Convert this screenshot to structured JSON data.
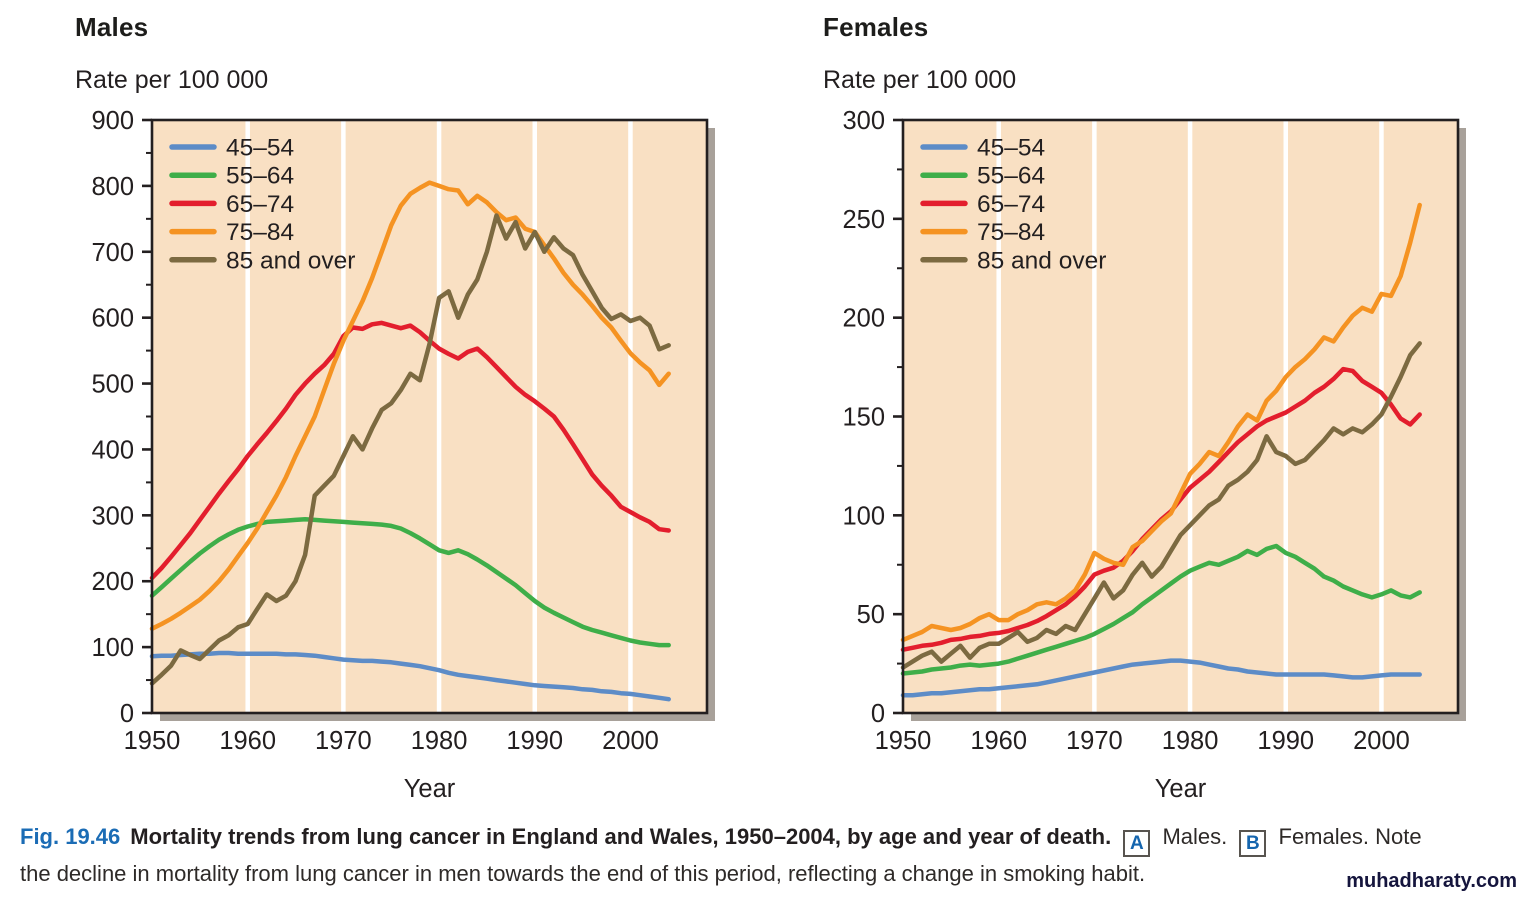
{
  "colors": {
    "age_45_54": "#5d8cc7",
    "age_55_64": "#3fae49",
    "age_65_74": "#e31e2d",
    "age_75_84": "#f59322",
    "age_85_over": "#7c6a41",
    "plot_bg": "#f9e0c3",
    "gridline": "#ffffff",
    "axis": "#231f20",
    "shadow": "#a8a19a",
    "fig_accent": "#1b6cb5",
    "marker_letter": "#1565ae",
    "watermark": "#15153d"
  },
  "chart_data": [
    {
      "type": "line",
      "key": "males",
      "title": "Males",
      "subtitle": "Rate per 100 000",
      "xlabel": "Year",
      "ylim": [
        0,
        900
      ],
      "ytick_step": 100,
      "yminor_step": 50,
      "xlim": [
        1950,
        2008
      ],
      "xticks": [
        1950,
        1960,
        1970,
        1980,
        1990,
        2000
      ],
      "x": {
        "start": 1950,
        "end": 2004,
        "step": 1
      },
      "legend_position": "top-left-inside",
      "series": [
        {
          "name": "45–54",
          "color_key": "age_45_54",
          "values": [
            86,
            87,
            87,
            88,
            89,
            90,
            90,
            91,
            91,
            90,
            90,
            90,
            90,
            90,
            89,
            89,
            88,
            87,
            85,
            83,
            81,
            80,
            79,
            79,
            78,
            77,
            75,
            73,
            71,
            68,
            65,
            61,
            58,
            56,
            54,
            52,
            50,
            48,
            46,
            44,
            42,
            41,
            40,
            39,
            38,
            36,
            35,
            33,
            32,
            30,
            29,
            27,
            25,
            23,
            21
          ]
        },
        {
          "name": "55–64",
          "color_key": "age_55_64",
          "values": [
            178,
            191,
            204,
            217,
            230,
            242,
            253,
            263,
            271,
            278,
            283,
            287,
            290,
            291,
            292,
            293,
            294,
            293,
            292,
            291,
            290,
            289,
            288,
            287,
            286,
            284,
            280,
            273,
            265,
            256,
            247,
            243,
            247,
            241,
            233,
            224,
            214,
            204,
            194,
            182,
            170,
            160,
            152,
            145,
            138,
            131,
            126,
            122,
            118,
            114,
            110,
            107,
            105,
            103,
            103
          ]
        },
        {
          "name": "65–74",
          "color_key": "age_65_74",
          "values": [
            205,
            220,
            237,
            255,
            273,
            293,
            313,
            333,
            352,
            370,
            390,
            408,
            425,
            443,
            462,
            483,
            500,
            515,
            528,
            545,
            572,
            585,
            583,
            590,
            592,
            588,
            584,
            588,
            578,
            565,
            553,
            545,
            538,
            548,
            553,
            540,
            525,
            510,
            495,
            483,
            473,
            462,
            450,
            430,
            408,
            385,
            362,
            345,
            330,
            313,
            305,
            297,
            290,
            279,
            277
          ]
        },
        {
          "name": "75–84",
          "color_key": "age_75_84",
          "values": [
            128,
            135,
            143,
            152,
            162,
            172,
            185,
            200,
            218,
            238,
            258,
            280,
            305,
            330,
            358,
            390,
            420,
            450,
            490,
            530,
            565,
            595,
            625,
            660,
            700,
            740,
            770,
            788,
            797,
            805,
            800,
            795,
            793,
            772,
            785,
            775,
            760,
            748,
            752,
            735,
            730,
            710,
            690,
            668,
            650,
            635,
            618,
            600,
            585,
            565,
            546,
            532,
            520,
            498,
            515
          ]
        },
        {
          "name": "85 and over",
          "color_key": "age_85_over",
          "values": [
            45,
            58,
            72,
            95,
            88,
            82,
            96,
            110,
            118,
            130,
            135,
            158,
            180,
            170,
            178,
            200,
            240,
            330,
            345,
            360,
            390,
            420,
            400,
            432,
            460,
            470,
            490,
            515,
            505,
            560,
            630,
            640,
            600,
            635,
            658,
            700,
            755,
            720,
            745,
            705,
            730,
            700,
            722,
            705,
            695,
            665,
            640,
            615,
            598,
            605,
            595,
            600,
            588,
            552,
            558
          ]
        }
      ]
    },
    {
      "type": "line",
      "key": "females",
      "title": "Females",
      "subtitle": "Rate per 100 000",
      "xlabel": "Year",
      "ylim": [
        0,
        300
      ],
      "ytick_step": 50,
      "yminor_step": 25,
      "xlim": [
        1950,
        2008
      ],
      "xticks": [
        1950,
        1960,
        1970,
        1980,
        1990,
        2000
      ],
      "x": {
        "start": 1950,
        "end": 2004,
        "step": 1
      },
      "legend_position": "top-left-inside",
      "series": [
        {
          "name": "45–54",
          "color_key": "age_45_54",
          "values": [
            9,
            9,
            9.5,
            10,
            10,
            10.5,
            11,
            11.5,
            12,
            12,
            12.5,
            13,
            13.5,
            14,
            14.5,
            15.5,
            16.5,
            17.5,
            18.5,
            19.5,
            20.5,
            21.5,
            22.5,
            23.5,
            24.5,
            25,
            25.5,
            26,
            26.5,
            26.5,
            26,
            25.5,
            24.5,
            23.5,
            22.5,
            22,
            21,
            20.5,
            20,
            19.5,
            19.5,
            19.5,
            19.5,
            19.5,
            19.5,
            19,
            18.5,
            18,
            18,
            18.5,
            19,
            19.5,
            19.5,
            19.5,
            19.5
          ]
        },
        {
          "name": "55–64",
          "color_key": "age_55_64",
          "values": [
            20,
            20.5,
            21,
            22,
            22.5,
            23,
            24,
            24.5,
            24,
            24.5,
            25,
            26,
            27.5,
            29,
            30.5,
            32,
            33.5,
            35,
            36.5,
            38,
            40,
            42.5,
            45,
            48,
            51,
            55,
            58.5,
            62,
            65.5,
            69,
            72,
            74,
            76,
            75,
            77,
            79,
            82,
            80,
            83,
            84.5,
            81,
            79,
            76,
            73,
            69,
            67,
            64,
            62,
            60,
            58.5,
            60,
            62,
            59.5,
            58.5,
            61
          ]
        },
        {
          "name": "65–74",
          "color_key": "age_65_74",
          "values": [
            32,
            33,
            34,
            34.5,
            35.5,
            37,
            37.5,
            38.5,
            39,
            40,
            40.5,
            41.5,
            43,
            44.5,
            46.5,
            49,
            52,
            55,
            59,
            64,
            70,
            72,
            73.5,
            77,
            82,
            88,
            93,
            98,
            102,
            108,
            114,
            118,
            122,
            127,
            132,
            137,
            141,
            145,
            148,
            150,
            152,
            155,
            158,
            162,
            165,
            169,
            174,
            173,
            168,
            165,
            162,
            156,
            149,
            146,
            151
          ]
        },
        {
          "name": "75–84",
          "color_key": "age_75_84",
          "values": [
            37,
            39,
            41,
            44,
            43,
            42,
            43,
            45,
            48,
            50,
            47,
            47,
            50,
            52,
            55,
            56,
            55,
            58,
            62,
            70,
            81,
            78,
            76,
            75,
            84,
            87,
            92,
            97,
            101,
            111,
            121,
            126,
            132,
            130,
            137,
            145,
            151,
            148,
            158,
            163,
            170,
            175,
            179,
            184,
            190,
            188,
            195,
            201,
            205,
            203,
            212,
            211,
            221,
            238,
            257
          ]
        },
        {
          "name": "85 and over",
          "color_key": "age_85_over",
          "values": [
            23,
            26,
            29,
            31,
            26,
            30,
            34,
            28,
            33,
            35,
            35,
            38,
            41,
            36,
            38,
            42,
            40,
            44,
            42,
            50,
            58,
            66,
            58,
            62,
            70,
            76,
            69,
            74,
            82,
            90,
            95,
            100,
            105,
            108,
            115,
            118,
            122,
            128,
            140,
            132,
            130,
            126,
            128,
            133,
            138,
            144,
            141,
            144,
            142,
            146,
            151,
            160,
            170,
            181,
            187
          ]
        }
      ]
    }
  ],
  "caption": {
    "fig_label": "Fig. 19.46",
    "bold_text": "Mortality trends from lung cancer in England and Wales, 1950–2004, by age and year of death.",
    "marker_a": "A",
    "marker_a_text": "Males.",
    "marker_b": "B",
    "marker_b_text": "Females. Note",
    "line2": "the decline in mortality from lung cancer in men towards the end of this period, reflecting a change in smoking habit."
  },
  "watermark": "muhadharaty.com"
}
